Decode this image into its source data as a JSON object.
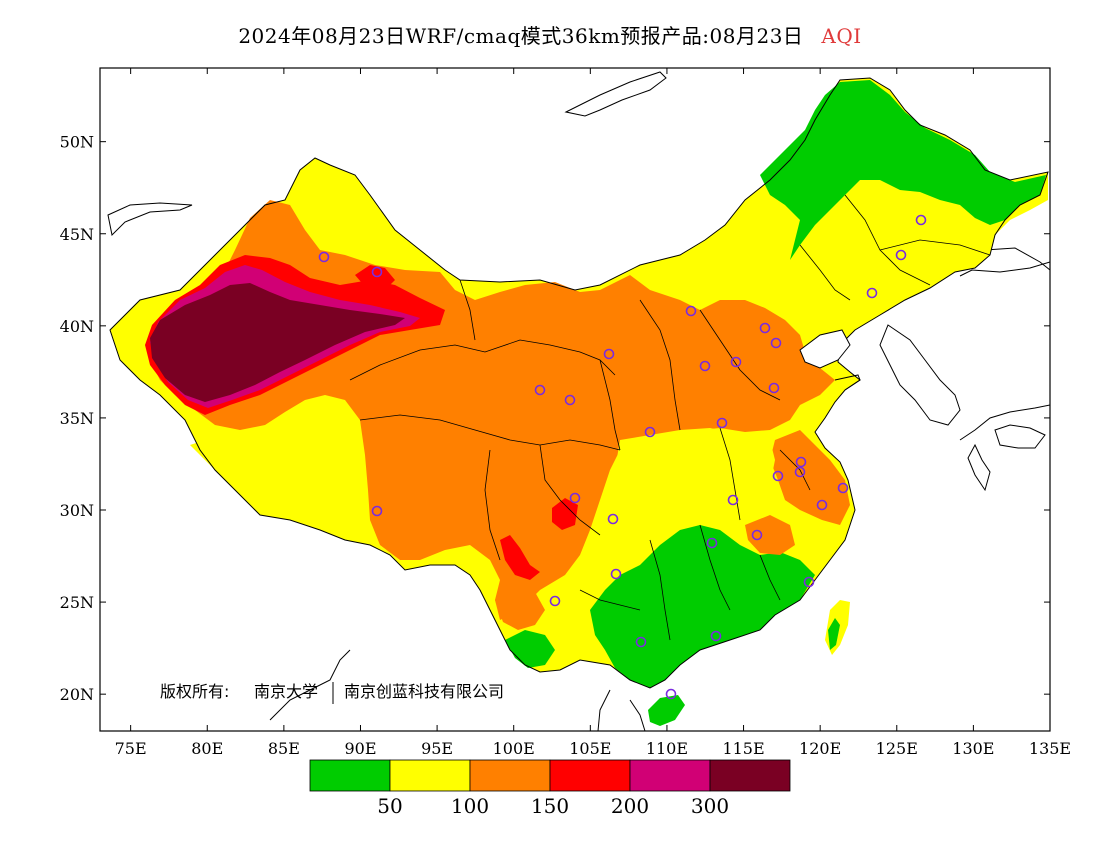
{
  "title": {
    "text": "2024年08月23日WRF/cmaq模式36km预报产品:08月23日",
    "variable": "AQI",
    "variable_color": "#e03a3a"
  },
  "map": {
    "lon_range": [
      73,
      135
    ],
    "lat_range": [
      18,
      54
    ],
    "x_ticks": [
      "75E",
      "80E",
      "85E",
      "90E",
      "95E",
      "100E",
      "105E",
      "110E",
      "115E",
      "120E",
      "125E",
      "130E",
      "135E"
    ],
    "y_ticks": [
      "20N",
      "25N",
      "30N",
      "35N",
      "40N",
      "45N",
      "50N"
    ],
    "copyright_label": "版权所有:",
    "copyright_org1": "南京大学",
    "copyright_org2": "南京创蓝科技有限公司",
    "station_marker_color": "#7a2be0"
  },
  "legend": {
    "colors": [
      "#00cc00",
      "#ffff00",
      "#ff8000",
      "#ff0000",
      "#d10075",
      "#7a0023"
    ],
    "labels": [
      "50",
      "100",
      "150",
      "200",
      "300"
    ]
  }
}
